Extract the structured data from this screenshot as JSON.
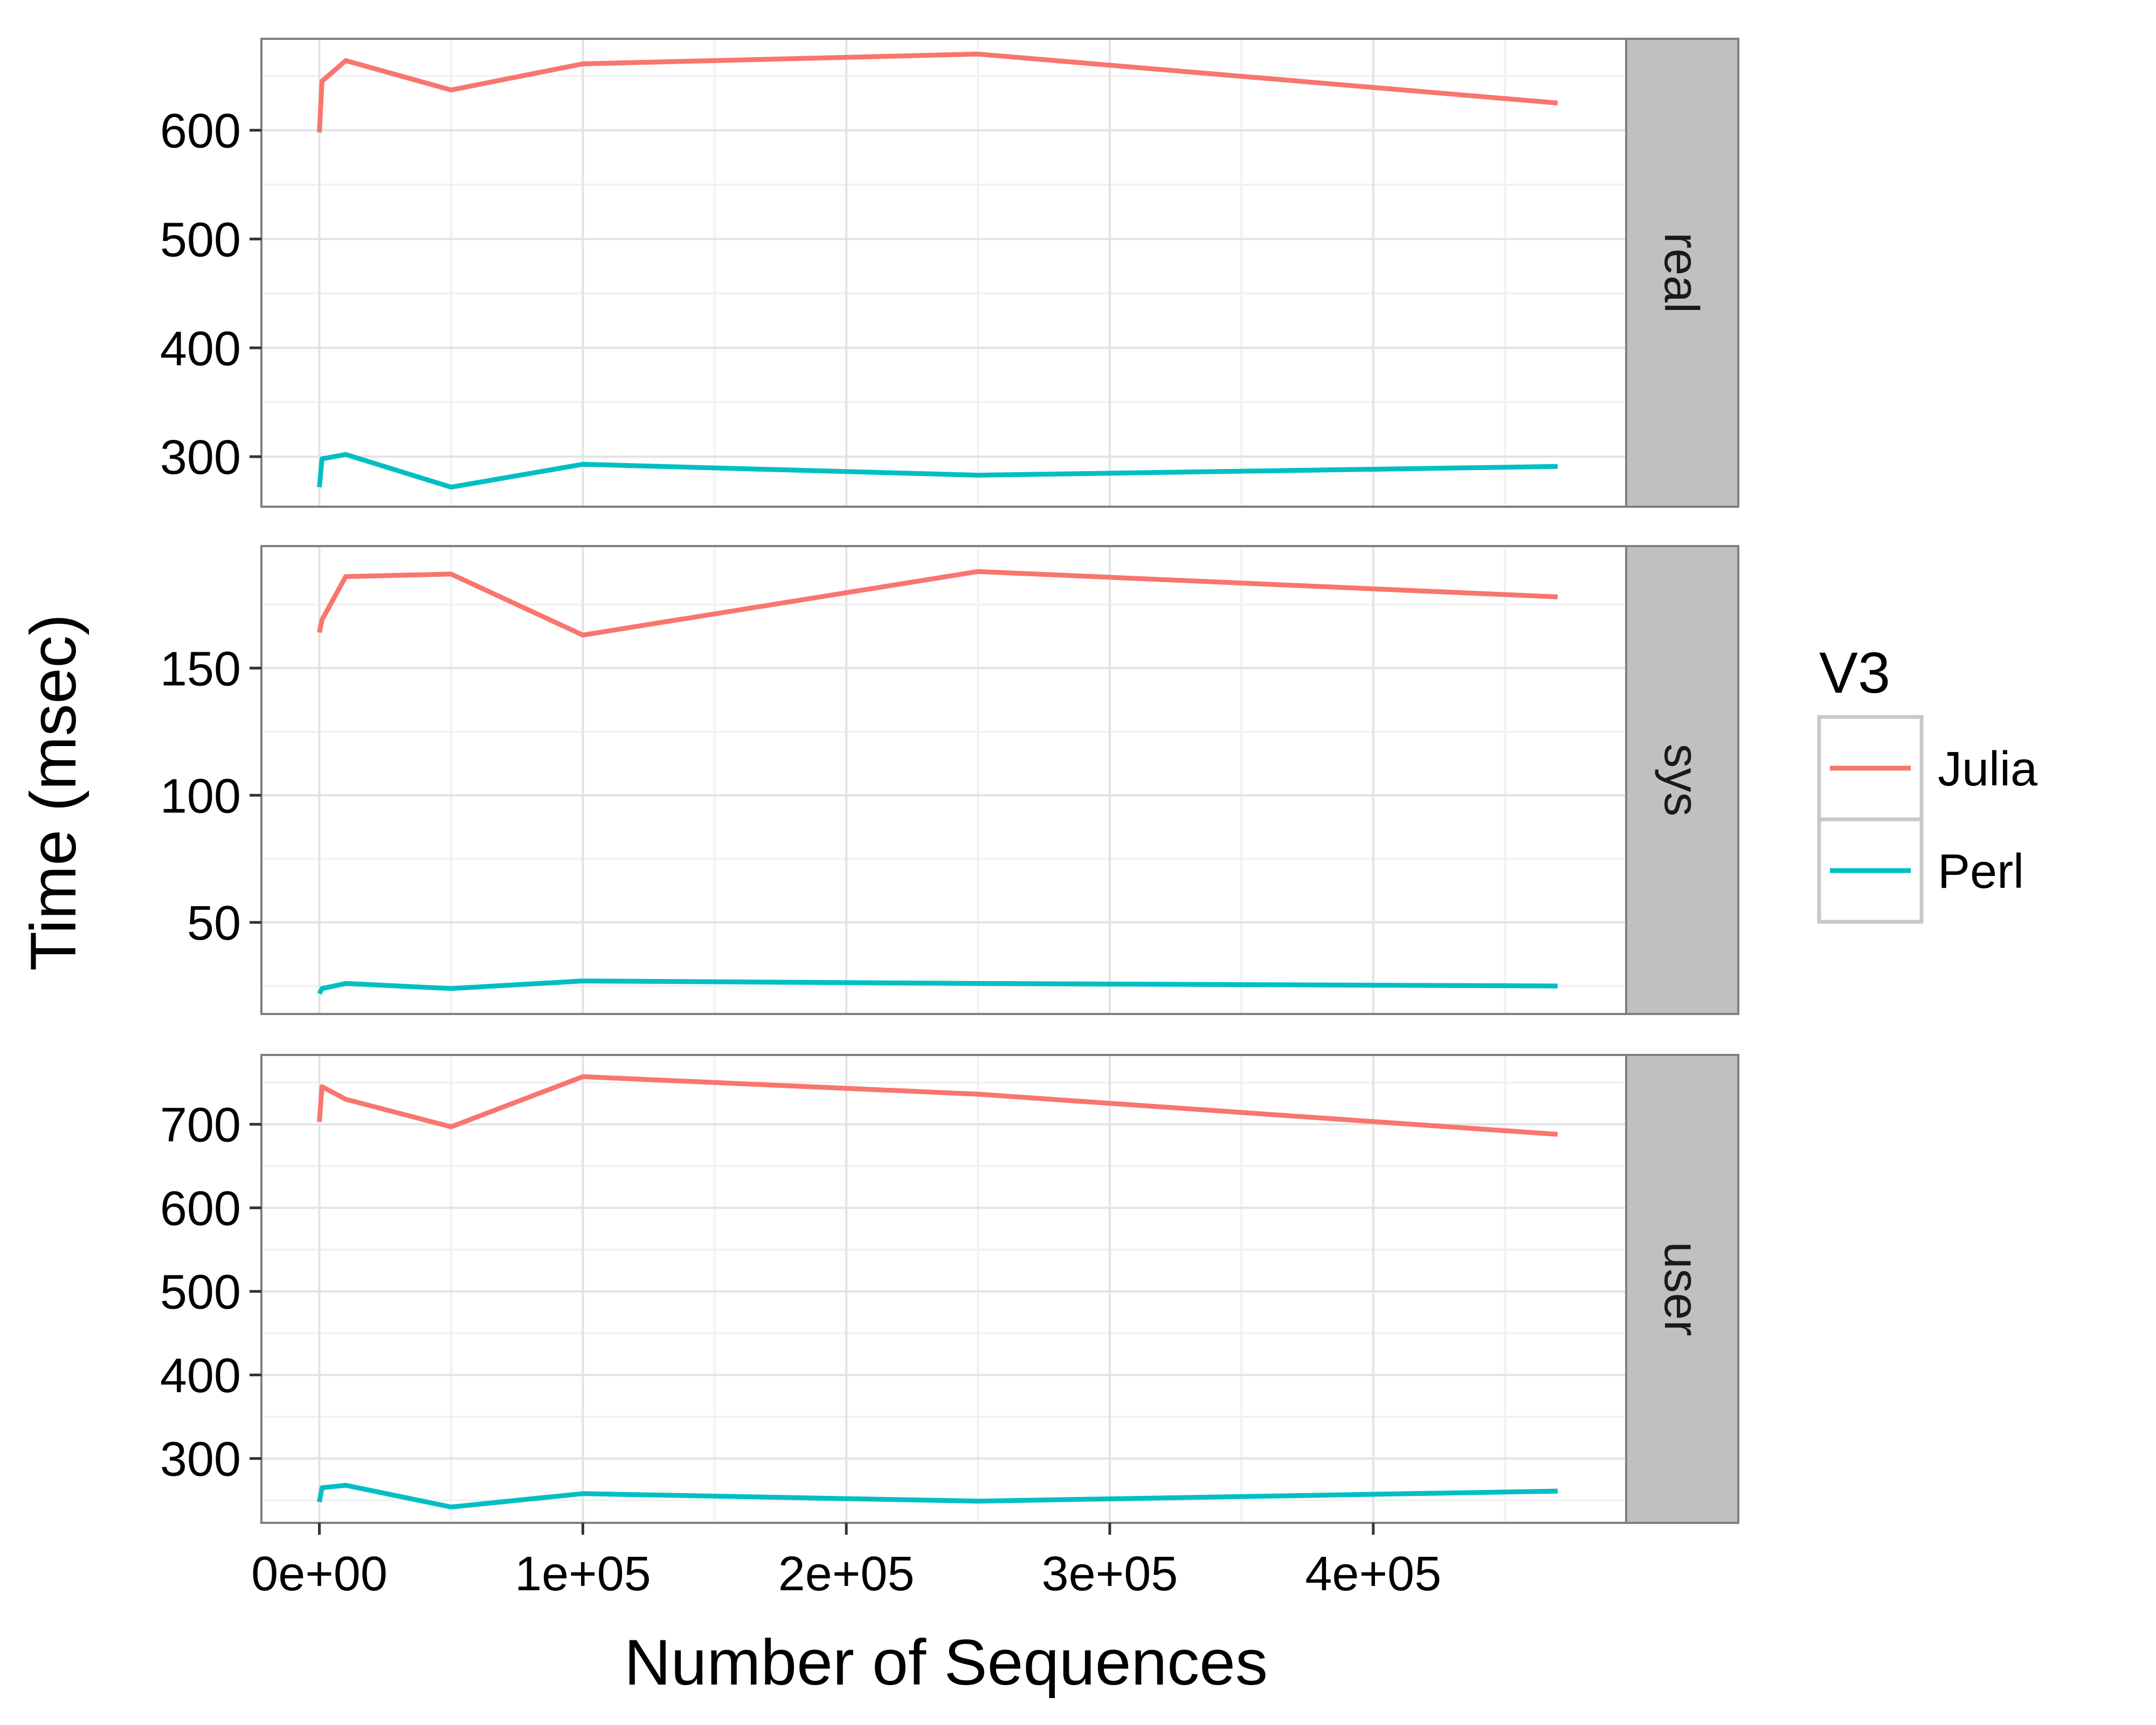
{
  "chart_data": {
    "type": "line",
    "xlabel": "Number of Sequences",
    "ylabel": "Time (msec)",
    "xlim": [
      -22000,
      496000
    ],
    "x_ticks": [
      0,
      100000,
      200000,
      300000,
      400000
    ],
    "x_tick_labels": [
      "0e+00",
      "1e+05",
      "2e+05",
      "3e+05",
      "4e+05"
    ],
    "x": [
      1,
      1000,
      10000,
      50000,
      100000,
      250000,
      470000
    ],
    "legend": {
      "title": "V3",
      "position": "right",
      "entries": [
        {
          "name": "Julia",
          "color": "#F8766D"
        },
        {
          "name": "Perl",
          "color": "#00BFC4"
        }
      ]
    },
    "grid": true,
    "facets": [
      {
        "label": "real",
        "ylim": [
          254,
          684
        ],
        "y_ticks": [
          300,
          400,
          500,
          600
        ],
        "series": [
          {
            "name": "Julia",
            "color": "#F8766D",
            "values": [
              598,
              645,
              664,
              637,
              661,
              670,
              625
            ]
          },
          {
            "name": "Perl",
            "color": "#00BFC4",
            "values": [
              272,
              298,
              302,
              272,
              293,
              283,
              291
            ]
          }
        ]
      },
      {
        "label": "sys",
        "ylim": [
          14,
          198
        ],
        "y_ticks": [
          50,
          100,
          150
        ],
        "series": [
          {
            "name": "Julia",
            "color": "#F8766D",
            "values": [
              164,
              169,
              186,
              187,
              163,
              188,
              178
            ]
          },
          {
            "name": "Perl",
            "color": "#00BFC4",
            "values": [
              22,
              24,
              26,
              24,
              27,
              26,
              25
            ]
          }
        ]
      },
      {
        "label": "user",
        "ylim": [
          223,
          783
        ],
        "y_ticks": [
          300,
          400,
          500,
          600,
          700
        ],
        "series": [
          {
            "name": "Julia",
            "color": "#F8766D",
            "values": [
              703,
              745,
              730,
              697,
              757,
              736,
              688
            ]
          },
          {
            "name": "Perl",
            "color": "#00BFC4",
            "values": [
              248,
              265,
              268,
              242,
              258,
              249,
              261
            ]
          }
        ]
      }
    ]
  }
}
